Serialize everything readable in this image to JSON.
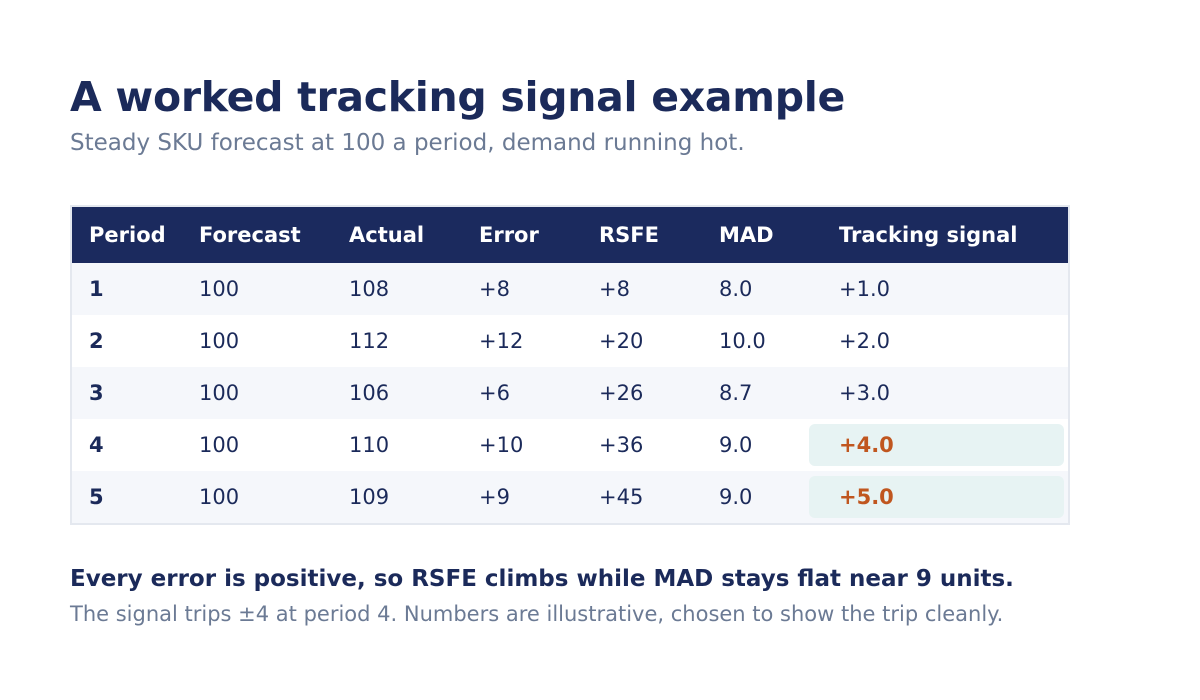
{
  "header": {
    "title": "A worked tracking signal example",
    "subtitle": "Steady SKU forecast at 100 a period, demand running hot."
  },
  "table": {
    "columns": [
      "Period",
      "Forecast",
      "Actual",
      "Error",
      "RSFE",
      "MAD",
      "Tracking signal"
    ],
    "rows": [
      {
        "period": "1",
        "forecast": "100",
        "actual": "108",
        "error": "+8",
        "rsfe": "+8",
        "mad": "8.0",
        "signal": "+1.0",
        "flagged": false
      },
      {
        "period": "2",
        "forecast": "100",
        "actual": "112",
        "error": "+12",
        "rsfe": "+20",
        "mad": "10.0",
        "signal": "+2.0",
        "flagged": false
      },
      {
        "period": "3",
        "forecast": "100",
        "actual": "106",
        "error": "+6",
        "rsfe": "+26",
        "mad": "8.7",
        "signal": "+3.0",
        "flagged": false
      },
      {
        "period": "4",
        "forecast": "100",
        "actual": "110",
        "error": "+10",
        "rsfe": "+36",
        "mad": "9.0",
        "signal": "+4.0",
        "flagged": true
      },
      {
        "period": "5",
        "forecast": "100",
        "actual": "109",
        "error": "+9",
        "rsfe": "+45",
        "mad": "9.0",
        "signal": "+5.0",
        "flagged": true
      }
    ]
  },
  "footer": {
    "takeaway": "Every error is positive, so RSFE climbs while MAD stays flat near 9 units.",
    "caption": "The signal trips ±4 at period 4. Numbers are illustrative, chosen to show the trip cleanly."
  },
  "colors": {
    "header_bg": "#1b2a5e",
    "title": "#1b2a5a",
    "muted_text": "#6b7a94",
    "flag_text": "#c0561f",
    "flag_bg": "#e7f3f3"
  }
}
